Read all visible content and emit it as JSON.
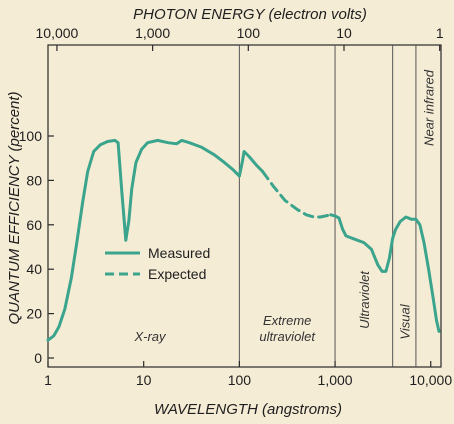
{
  "chart_data": {
    "type": "line",
    "title": "",
    "top_axis": {
      "label": "PHOTON ENERGY (electron volts)",
      "ticks": [
        {
          "label": "10,000",
          "wavelength": 1.24
        },
        {
          "label": "1,000",
          "wavelength": 12.4
        },
        {
          "label": "100",
          "wavelength": 124
        },
        {
          "label": "10",
          "wavelength": 1240
        },
        {
          "label": "1",
          "wavelength": 12400
        }
      ]
    },
    "xlabel": "WAVELENGTH (angstroms)",
    "ylabel": "QUANTUM EFFICIENCY (percent)",
    "xscale": "log",
    "xlim": [
      1,
      12800
    ],
    "ylim": [
      0,
      105
    ],
    "xticks": [
      {
        "label": "1",
        "value": 1
      },
      {
        "label": "10",
        "value": 10
      },
      {
        "label": "100",
        "value": 100
      },
      {
        "label": "1,000",
        "value": 1000
      },
      {
        "label": "10,000",
        "value": 10000
      }
    ],
    "yticks": [
      0,
      20,
      40,
      60,
      80,
      100
    ],
    "colors": {
      "line": "#3aa48c",
      "frame": "#2a2a2a",
      "divider": "#555555"
    },
    "legend": {
      "placement": "left-middle",
      "entries": [
        {
          "label": "Measured",
          "style": "solid"
        },
        {
          "label": "Expected",
          "style": "dashed"
        }
      ]
    },
    "regions": [
      {
        "label": "X-ray",
        "from": 1,
        "to": 100
      },
      {
        "label": "Extreme",
        "label2": "ultraviolet",
        "from": 100,
        "to": 1000
      },
      {
        "label": "Ultraviolet",
        "from": 1000,
        "to": 4000,
        "vertical": true
      },
      {
        "label": "Visual",
        "from": 4000,
        "to": 7000,
        "vertical": true
      },
      {
        "label": "Near infrared",
        "from": 7000,
        "to": 12800,
        "vertical": true
      }
    ],
    "dividers": [
      100,
      1000,
      4000,
      7000
    ],
    "series": [
      {
        "name": "Measured",
        "style": "solid",
        "points": [
          [
            1.0,
            8
          ],
          [
            1.15,
            10
          ],
          [
            1.3,
            14
          ],
          [
            1.5,
            22
          ],
          [
            1.75,
            36
          ],
          [
            2.0,
            52
          ],
          [
            2.3,
            70
          ],
          [
            2.6,
            84
          ],
          [
            3.0,
            93
          ],
          [
            3.5,
            96
          ],
          [
            4.2,
            97.5
          ],
          [
            5.0,
            98
          ],
          [
            5.4,
            97
          ],
          [
            5.9,
            75
          ],
          [
            6.5,
            53
          ],
          [
            7.0,
            62
          ],
          [
            7.5,
            76
          ],
          [
            8.3,
            88
          ],
          [
            9.5,
            94
          ],
          [
            11,
            97
          ],
          [
            14,
            98
          ],
          [
            18,
            97
          ],
          [
            22,
            96.5
          ],
          [
            25,
            98
          ],
          [
            30,
            97
          ],
          [
            40,
            95
          ],
          [
            55,
            91.5
          ],
          [
            70,
            88
          ],
          [
            85,
            85
          ],
          [
            100,
            82
          ]
        ]
      },
      {
        "name": "Measured",
        "style": "solid",
        "points": [
          [
            100,
            82
          ],
          [
            108,
            89
          ],
          [
            112,
            93
          ],
          [
            125,
            91
          ],
          [
            150,
            87
          ],
          [
            175,
            84
          ]
        ]
      },
      {
        "name": "Expected",
        "style": "dashed",
        "points": [
          [
            175,
            84
          ],
          [
            230,
            77
          ],
          [
            300,
            71
          ],
          [
            400,
            67
          ],
          [
            500,
            64.5
          ],
          [
            600,
            63.5
          ],
          [
            700,
            63.5
          ],
          [
            800,
            64
          ],
          [
            900,
            64.5
          ]
        ]
      },
      {
        "name": "Measured",
        "style": "solid",
        "points": [
          [
            900,
            64.5
          ],
          [
            1000,
            64
          ],
          [
            1100,
            63
          ],
          [
            1200,
            58
          ],
          [
            1300,
            55
          ],
          [
            1600,
            53.5
          ],
          [
            2000,
            52
          ],
          [
            2400,
            49
          ],
          [
            2800,
            42
          ],
          [
            3100,
            39
          ],
          [
            3400,
            39
          ],
          [
            3700,
            45
          ],
          [
            4000,
            54
          ],
          [
            4300,
            58
          ],
          [
            4800,
            61.5
          ],
          [
            5500,
            63.5
          ],
          [
            6300,
            62.5
          ],
          [
            7000,
            62.5
          ],
          [
            7700,
            60
          ],
          [
            8500,
            52
          ],
          [
            9500,
            40
          ],
          [
            10500,
            28
          ],
          [
            11500,
            17
          ],
          [
            12200,
            12
          ]
        ]
      }
    ]
  }
}
